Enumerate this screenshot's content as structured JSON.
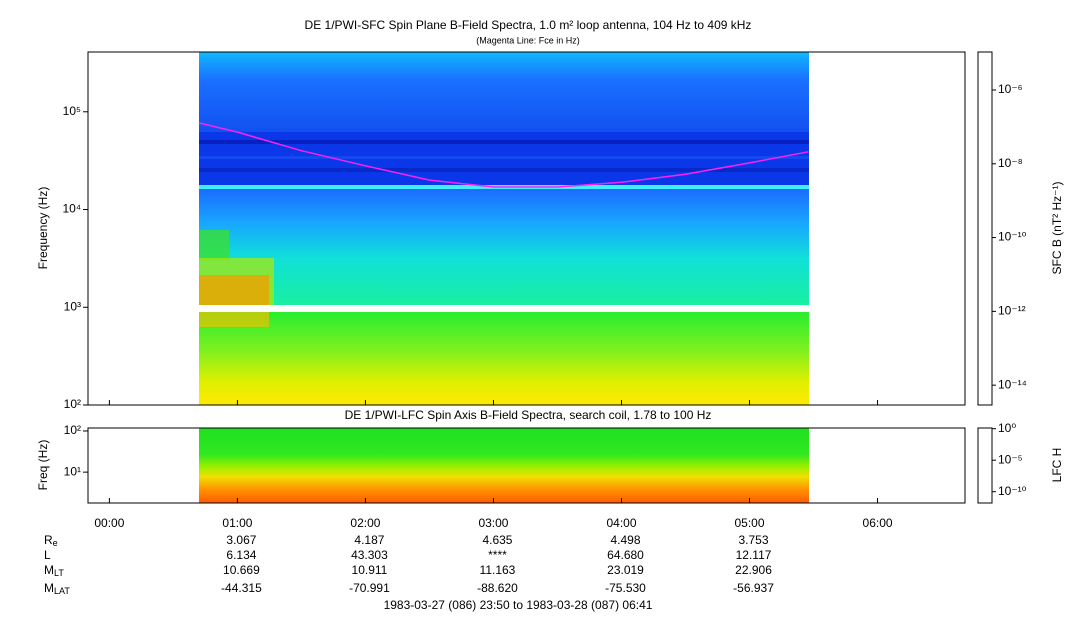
{
  "chart_data": [
    {
      "type": "spectrogram",
      "title": "DE 1/PWI-SFC  Spin Plane B-Field Spectra, 1.0 m² loop antenna, 104 Hz to 409 kHz",
      "subtitle": "(Magenta Line: Fce in Hz)",
      "ylabel": "Frequency (Hz)",
      "log_y": true,
      "xlim": [
        -0.167,
        6.683
      ],
      "ylim": [
        100,
        409000
      ],
      "yticks": [
        {
          "value": 100,
          "label": "10²"
        },
        {
          "value": 1000,
          "label": "10³"
        },
        {
          "value": 10000,
          "label": "10⁴"
        },
        {
          "value": 100000,
          "label": "10⁵"
        }
      ],
      "series": [
        {
          "color": "#ff22ff",
          "x": [
            0.7,
            1.0,
            1.5,
            2.0,
            2.5,
            3.0,
            3.5,
            4.0,
            4.5,
            5.0,
            5.46
          ],
          "values": [
            77000,
            62000,
            40000,
            28000,
            20000,
            17000,
            17000,
            19000,
            23000,
            30000,
            39000
          ]
        }
      ],
      "colorbar": {
        "label": "SFC B (nT² Hz⁻¹)",
        "log": true,
        "lim": [
          2.9e-15,
          1.07e-05
        ],
        "ticks": [
          {
            "value": 1e-06,
            "label": "10⁻⁶"
          },
          {
            "value": 1e-08,
            "label": "10⁻⁸"
          },
          {
            "value": 1e-10,
            "label": "10⁻¹⁰"
          },
          {
            "value": 1e-12,
            "label": "10⁻¹²"
          },
          {
            "value": 1e-14,
            "label": "10⁻¹⁴"
          }
        ]
      }
    },
    {
      "type": "spectrogram",
      "title": "DE 1/PWI-LFC  Spin Axis B-Field Spectra, search coil, 1.78 to 100 Hz",
      "ylabel": "Freq (Hz)",
      "log_y": true,
      "xlim": [
        -0.167,
        6.683
      ],
      "ylim": [
        1.78,
        118
      ],
      "yticks": [
        {
          "value": 10,
          "label": "10¹"
        },
        {
          "value": 100,
          "label": "10²"
        }
      ],
      "xticks": [
        {
          "value": 0,
          "label": "00:00"
        },
        {
          "value": 1,
          "label": "01:00"
        },
        {
          "value": 2,
          "label": "02:00"
        },
        {
          "value": 3,
          "label": "03:00"
        },
        {
          "value": 4,
          "label": "04:00"
        },
        {
          "value": 5,
          "label": "05:00"
        },
        {
          "value": 6,
          "label": "06:00"
        }
      ],
      "colorbar": {
        "label": "LFC H",
        "log": true,
        "lim": [
          1.6e-12,
          1.3
        ],
        "ticks": [
          {
            "value": 1,
            "label": "10⁰"
          },
          {
            "value": 1e-05,
            "label": "10⁻⁵"
          },
          {
            "value": 1e-10,
            "label": "10⁻¹⁰"
          }
        ]
      }
    }
  ],
  "ephemeris": {
    "labels": [
      {
        "text": "R",
        "sub": "e"
      },
      {
        "text": "L"
      },
      {
        "text": "M",
        "sub": "LT"
      },
      {
        "text": "M",
        "sub": "LAT"
      }
    ],
    "rows": [
      [
        "3.067",
        "4.187",
        "4.635",
        "4.498",
        "3.753"
      ],
      [
        "6.134",
        "43.303",
        "****",
        "64.680",
        "12.117"
      ],
      [
        "10.669",
        "10.911",
        "11.163",
        "23.019",
        "22.906"
      ],
      [
        "-44.315",
        "-70.991",
        "-88.620",
        "-75.530",
        "-56.937"
      ]
    ]
  },
  "time_range": "1983-03-27 (086) 23:50 to 1983-03-28 (087) 06:41"
}
